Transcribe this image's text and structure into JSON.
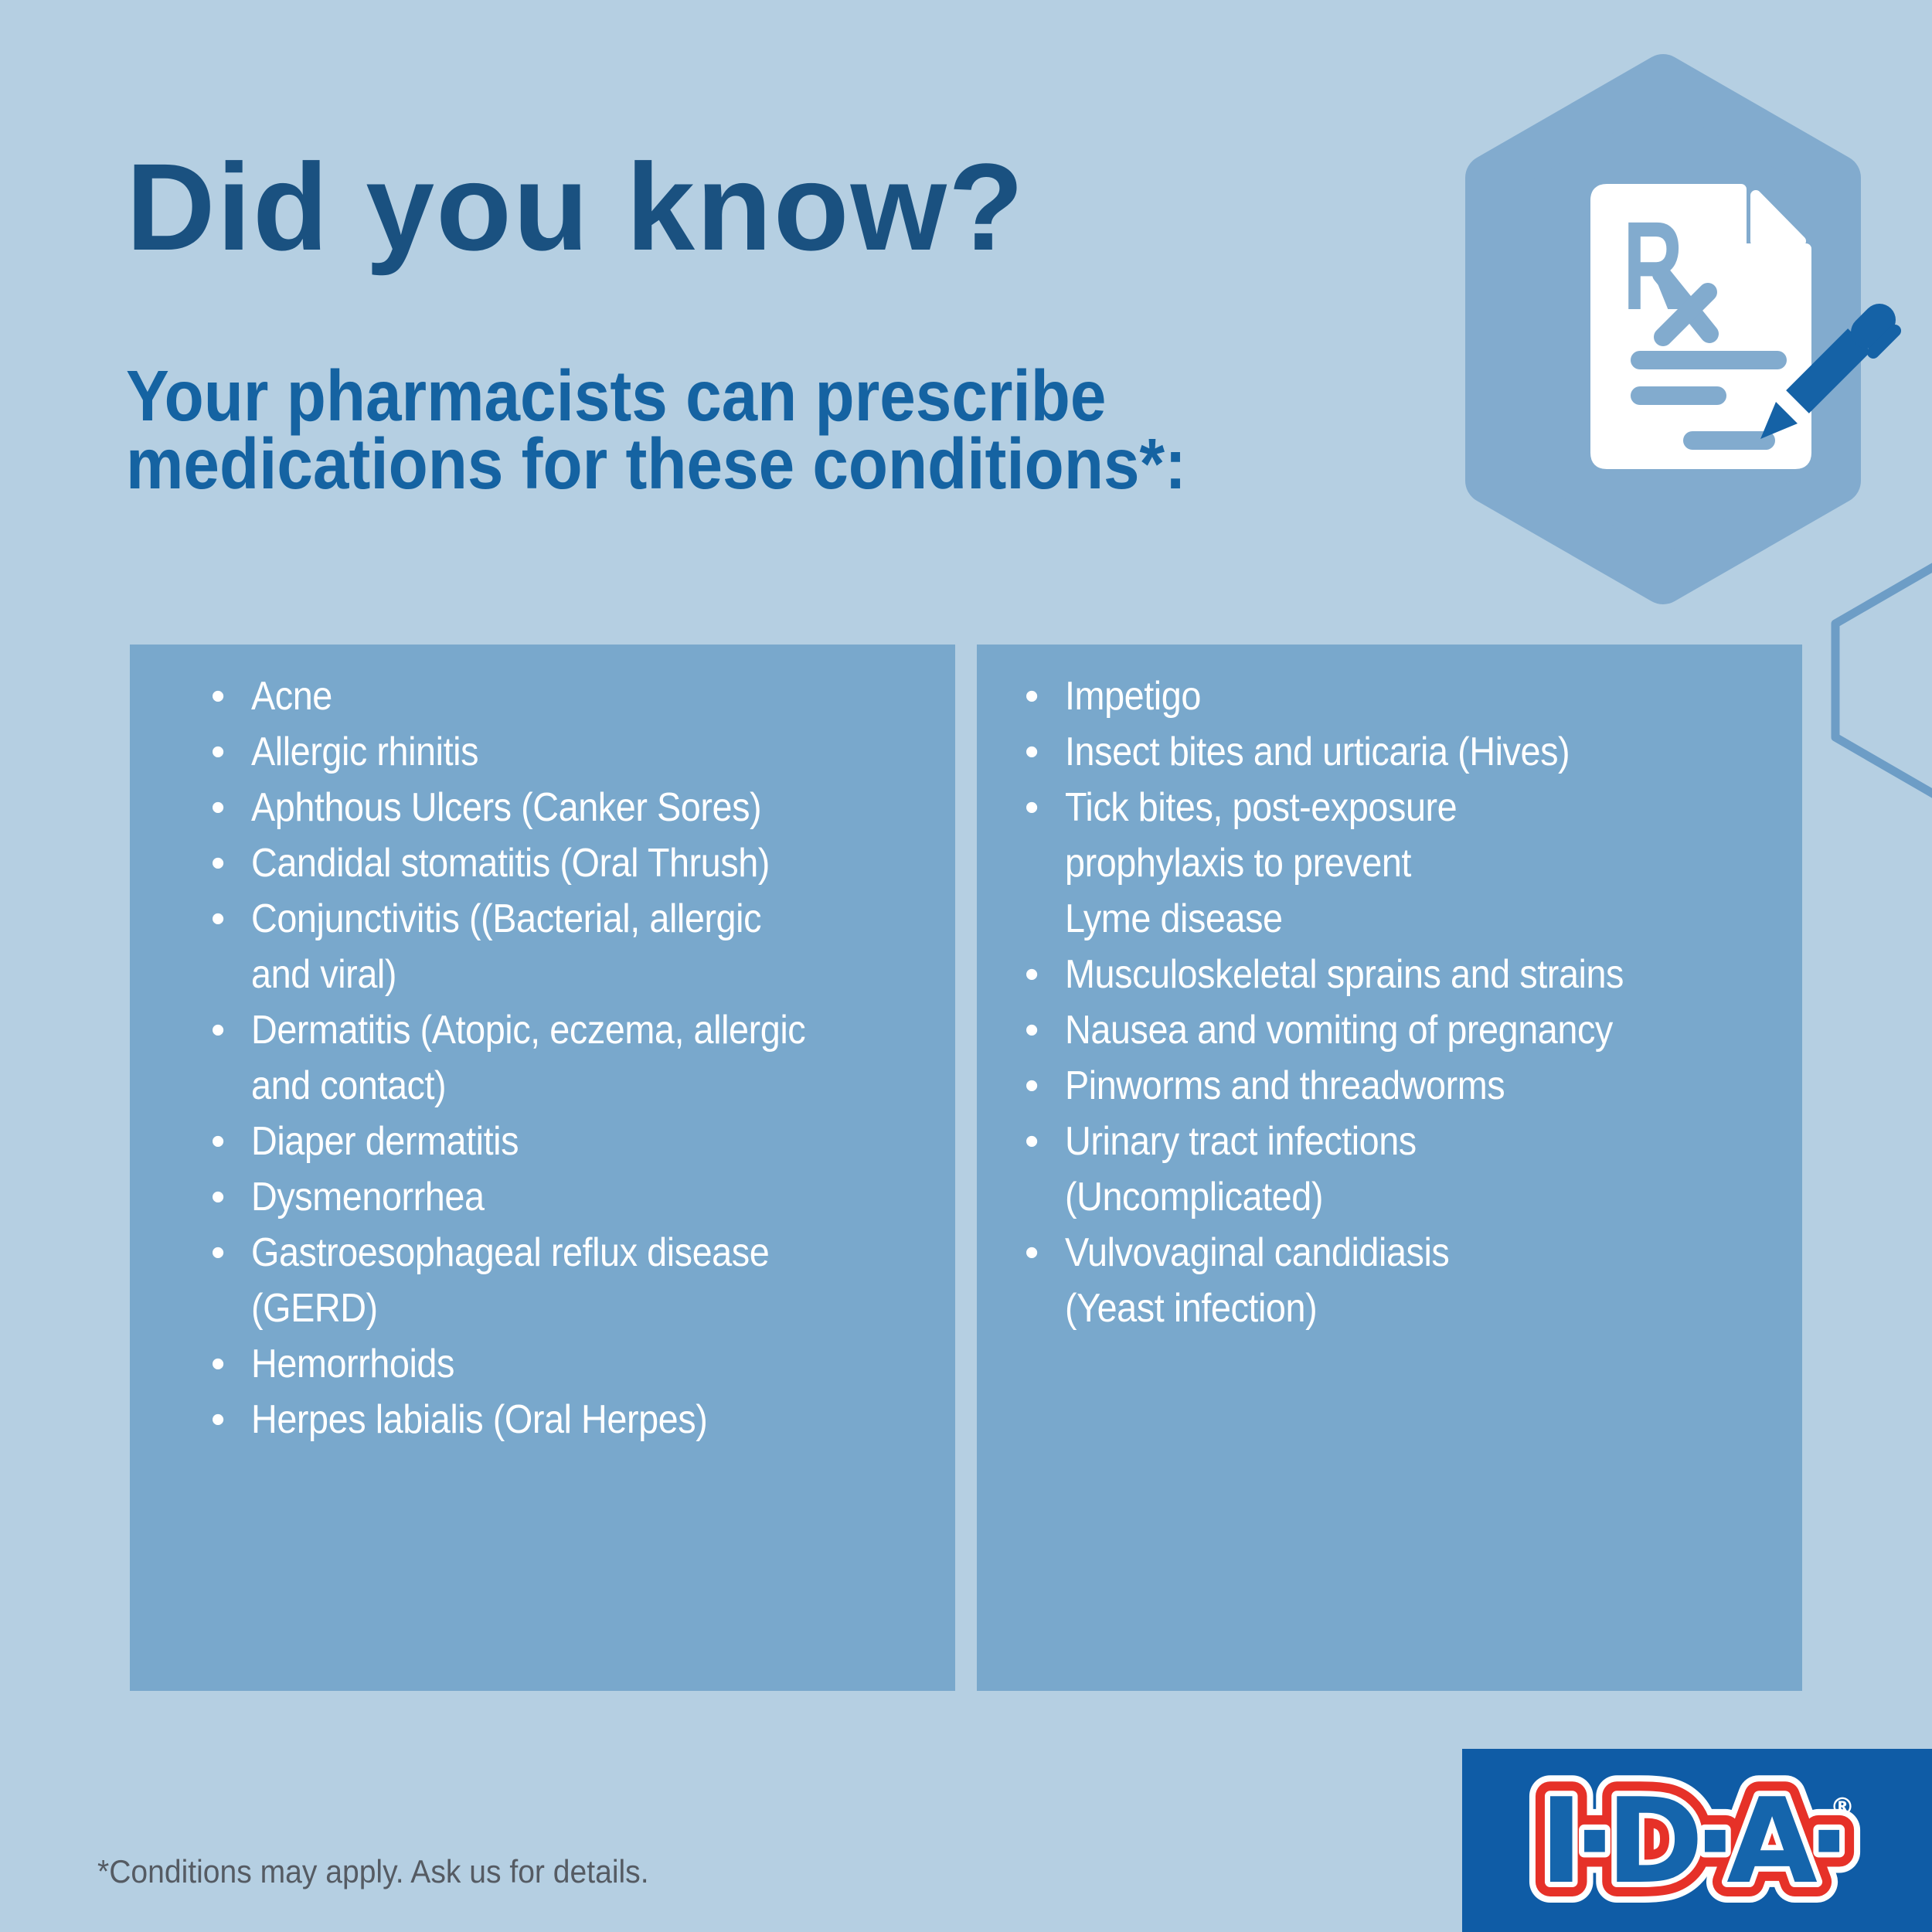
{
  "colors": {
    "bg": "#b5cfe2",
    "panel": "#79a8cc",
    "hex_fill": "#82abce",
    "hex_outline": "#6d9dc6",
    "icon_blue": "#82abce",
    "pen_blue": "#1562a6",
    "paper": "#ffffff",
    "title": "#1a5180",
    "subtitle": "#1563a2",
    "list_text": "#ffffff",
    "footnote": "#555b63",
    "logo_bg": "#0f5ca6",
    "logo_red": "#e63128",
    "logo_letter": "#1565ac"
  },
  "header": {
    "title": "Did you know?",
    "subtitle_line1": "Your pharmacists can prescribe",
    "subtitle_line2": "medications for these conditions*:"
  },
  "icons": {
    "rx_label": "R",
    "prescription_icon": "rx-prescription-document-with-pen",
    "hexagon_badge": "hexagon-badge",
    "hexagon_outline": "hexagon-outline",
    "bullet_glyph": "•"
  },
  "conditions": {
    "left": [
      "Acne",
      "Allergic rhinitis",
      "Aphthous Ulcers (Canker Sores)",
      "Candidal stomatitis (Oral Thrush)",
      "Conjunctivitis ((Bacterial, allergic\nand viral)",
      "Dermatitis (Atopic, eczema, allergic\nand contact)",
      "Diaper dermatitis",
      "Dysmenorrhea",
      "Gastroesophageal reflux disease\n(GERD)",
      "Hemorrhoids",
      "Herpes labialis (Oral Herpes)"
    ],
    "right": [
      "Impetigo",
      "Insect bites and urticaria (Hives)",
      "Tick bites, post-exposure\nprophylaxis to prevent\nLyme disease",
      "Musculoskeletal sprains and strains",
      "Nausea and vomiting of pregnancy",
      "Pinworms and threadworms",
      "Urinary tract infections\n(Uncomplicated)",
      "Vulvovaginal candidiasis\n(Yeast infection)"
    ]
  },
  "footer": {
    "footnote": "*Conditions may apply. Ask us for details.",
    "logo": {
      "text": "I·D·A·",
      "registered": "®"
    }
  }
}
